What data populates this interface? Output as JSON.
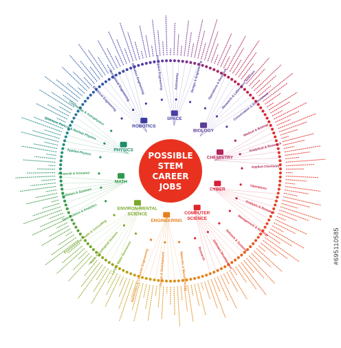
{
  "center": {
    "lines": [
      "POSSIBLE",
      "STEM",
      "CAREER",
      "JOBS"
    ],
    "fill": "#e8321f",
    "text_color": "#ffffff"
  },
  "stock_id": "#695110585",
  "watermark": "adobe stock",
  "categories": [
    {
      "name": "ROBOTICS",
      "color": "#3c3c9e",
      "icon": "robot-icon",
      "subs": [
        "Electrical Engineering",
        "Mechanical Engineering",
        "Robotics Engineering"
      ]
    },
    {
      "name": "SPACE",
      "color": "#4a3fa6",
      "icon": "rocket-icon",
      "subs": [
        "Aerospace Engineering",
        "Astronomy",
        "Design & Engineering"
      ]
    },
    {
      "name": "BIOLOGY",
      "color": "#5a3a9a",
      "icon": "dna-icon",
      "subs": [
        "Operations & Research",
        "Research & Laboratory Sciences",
        "Conservation & Environment"
      ]
    },
    {
      "name": "CHEMISTRY",
      "color": "#b0245a",
      "icon": "flask-icon",
      "subs": [
        "Medical & Biology",
        "Analytical & Research",
        "Applied Chemistry"
      ]
    },
    {
      "name": "CYBER",
      "color": "#d61f3a",
      "icon": "lock-icon",
      "subs": [
        "Operations",
        "Analysis & Research",
        "Management & Strategy"
      ]
    },
    {
      "name": "COMPUTER SCIENCE",
      "color": "#e0262d",
      "icon": "laptop-icon",
      "subs": [
        "Network & Systems",
        "Software Development",
        "Research"
      ]
    },
    {
      "name": "ENGINEERING",
      "color": "#e8801a",
      "icon": "gear-icon",
      "subs": [
        "Materials & Manufacturing",
        "Design & Development",
        "Electronics & Computer Engineering"
      ]
    },
    {
      "name": "ENVIRON-MENTAL SCIENCE",
      "color": "#7aa82a",
      "icon": "globe-icon",
      "subs": [
        "Land & Water Resources",
        "Earth & Ecological Science",
        "Environmental Health & Consulting"
      ]
    },
    {
      "name": "MATH",
      "color": "#2e9a4a",
      "icon": "calculator-icon",
      "subs": [
        "Data Science & Analytics",
        "Software & Systems",
        "Financial & Actuarial"
      ]
    },
    {
      "name": "PHYSICS",
      "color": "#1f8c6a",
      "icon": "atom-icon",
      "subs": [
        "Applied Physics",
        "Quantum, Particle & Nuclear Physics",
        "Cosmology & Astrophysics"
      ]
    }
  ],
  "center_fill": "#e8321f"
}
